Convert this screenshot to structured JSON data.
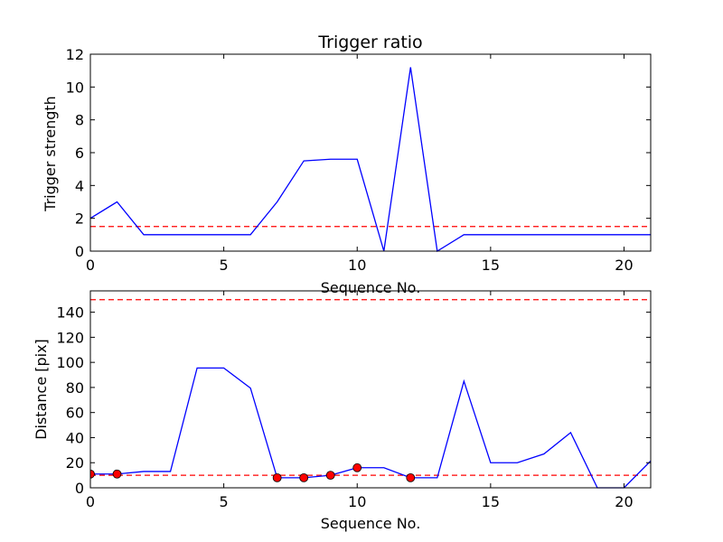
{
  "chart_data": [
    {
      "type": "line",
      "title": "Trigger ratio",
      "xlabel": "Sequence No.",
      "ylabel": "Trigger strength",
      "xlim": [
        0,
        21
      ],
      "ylim": [
        0,
        12
      ],
      "xticks": [
        0,
        5,
        10,
        15,
        20
      ],
      "yticks": [
        0,
        2,
        4,
        6,
        8,
        10,
        12
      ],
      "grid": false,
      "series": [
        {
          "color": "#0000ff",
          "x": [
            0,
            1,
            2,
            3,
            4,
            5,
            6,
            7,
            8,
            9,
            10,
            11,
            12,
            13,
            14,
            15,
            16,
            17,
            18,
            19,
            20,
            21
          ],
          "y": [
            2,
            3,
            1,
            1,
            1,
            1,
            1,
            3,
            5.5,
            5.6,
            5.6,
            0,
            11.2,
            0,
            1,
            1,
            1,
            1,
            1,
            1,
            1,
            1
          ]
        }
      ],
      "hlines": [
        {
          "y": 1.5,
          "color": "#ff0000",
          "style": "dashed"
        }
      ]
    },
    {
      "type": "line",
      "title": "",
      "xlabel": "Sequence No.",
      "ylabel": "Distance [pix]",
      "xlim": [
        0,
        21
      ],
      "ylim": [
        0,
        157
      ],
      "xticks": [
        0,
        5,
        10,
        15,
        20
      ],
      "yticks": [
        0,
        20,
        40,
        60,
        80,
        100,
        120,
        140
      ],
      "grid": false,
      "series": [
        {
          "color": "#0000ff",
          "x": [
            0,
            1,
            2,
            3,
            4,
            5,
            6,
            7,
            8,
            9,
            10,
            11,
            12,
            13,
            14,
            15,
            16,
            17,
            18,
            19,
            20,
            21
          ],
          "y": [
            11,
            11,
            13,
            13,
            95.5,
            95.5,
            79.5,
            8,
            8,
            10,
            16,
            16,
            8,
            8,
            85,
            20,
            20,
            27,
            44,
            0,
            0,
            21.5
          ]
        }
      ],
      "markers": {
        "color": "#ff0000",
        "x": [
          0,
          1,
          7,
          8,
          9,
          10,
          12
        ],
        "y": [
          11,
          11,
          8,
          8,
          10,
          16,
          8
        ]
      },
      "hlines": [
        {
          "y": 150,
          "color": "#ff0000",
          "style": "dashed"
        },
        {
          "y": 10,
          "color": "#ff0000",
          "style": "dashed"
        }
      ]
    }
  ]
}
